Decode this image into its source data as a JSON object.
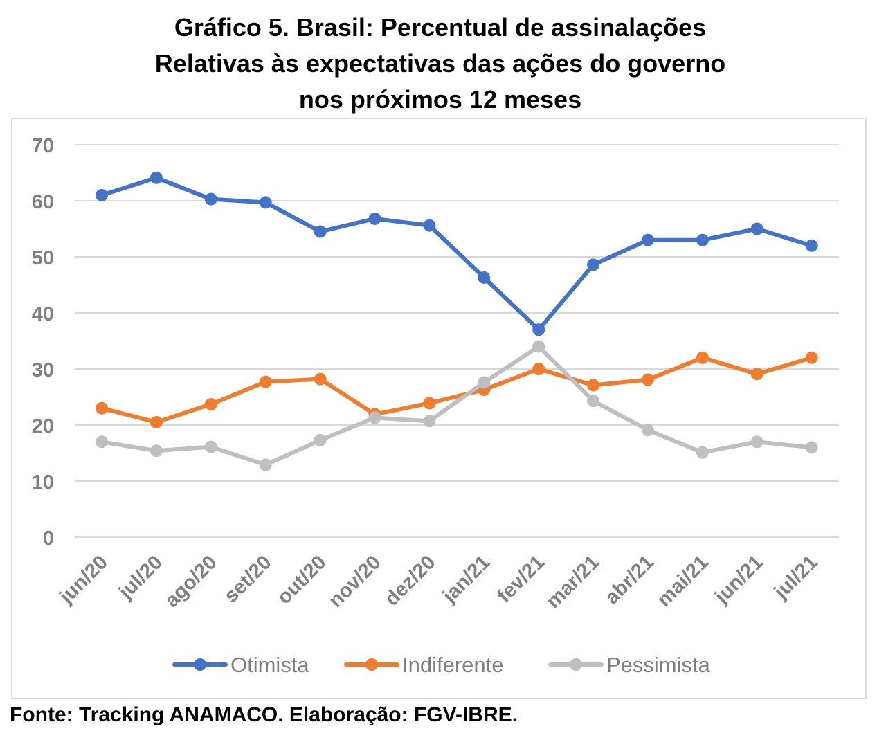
{
  "chart_data": {
    "type": "line",
    "title_lines": [
      "Gráfico 5. Brasil: Percentual de assinalações",
      "Relativas às expectativas das ações do governo",
      "nos próximos 12 meses"
    ],
    "categories": [
      "jun/20",
      "jul/20",
      "ago/20",
      "set/20",
      "out/20",
      "nov/20",
      "dez/20",
      "jan/21",
      "fev/21",
      "mar/21",
      "abr/21",
      "mai/21",
      "jun/21",
      "jul/21"
    ],
    "series": [
      {
        "name": "Otimista",
        "color": "#4472c4",
        "values": [
          61,
          64.1,
          60.3,
          59.7,
          54.5,
          56.8,
          55.6,
          46.3,
          37,
          48.6,
          53,
          53,
          55,
          52
        ]
      },
      {
        "name": "Indiferente",
        "color": "#ed7d31",
        "values": [
          23,
          20.5,
          23.7,
          27.7,
          28.2,
          21.9,
          23.9,
          26.3,
          30,
          27.1,
          28.1,
          32,
          29.1,
          32
        ]
      },
      {
        "name": "Pessimista",
        "color": "#bfbfbf",
        "values": [
          17,
          15.4,
          16.1,
          12.9,
          17.3,
          21.3,
          20.7,
          27.6,
          34,
          24.3,
          19.1,
          15.1,
          17,
          16
        ]
      }
    ],
    "ylim": [
      0,
      70
    ],
    "yticks": [
      0,
      10,
      20,
      30,
      40,
      50,
      60,
      70
    ],
    "grid": true,
    "legend_position": "bottom"
  },
  "footer": "Fonte: Tracking ANAMACO. Elaboração: FGV-IBRE."
}
